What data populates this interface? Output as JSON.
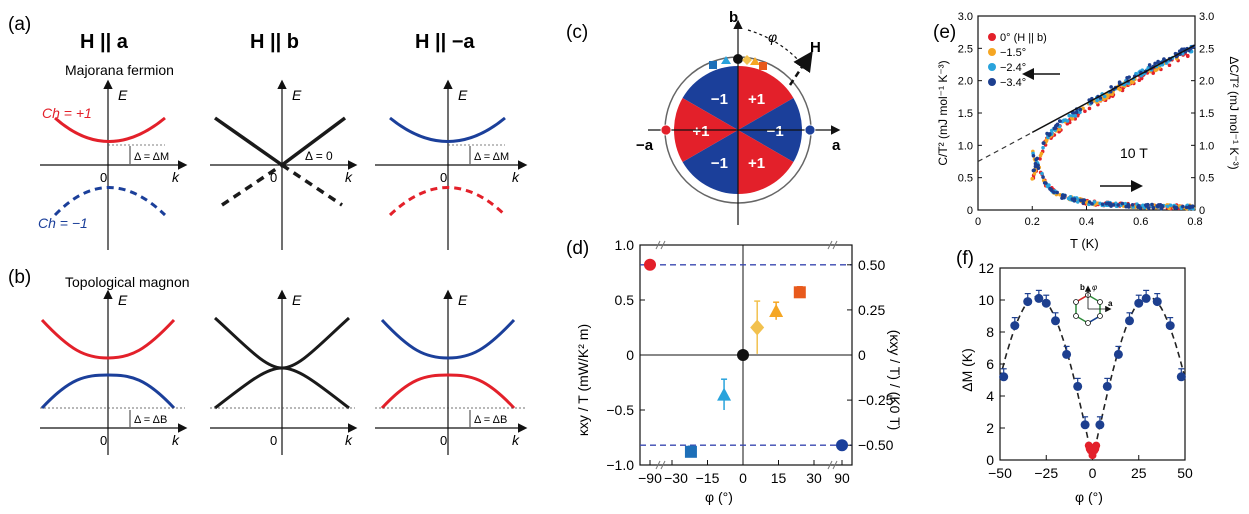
{
  "colors": {
    "red": "#e3202a",
    "blue": "#1b3f9a",
    "black": "#1a1a1a",
    "orange": "#e85a1c",
    "yellow": "#f5a623",
    "gold": "#f2c14e",
    "lightblue": "#29a3dc",
    "midblue": "#1d6fb8",
    "darkblue": "#1d3f8f"
  },
  "panels": {
    "a": {
      "label": "(a)",
      "title_a": "H || a",
      "title_b": "H || b",
      "title_ma": "H || −a",
      "subtitle": "Majorana fermion",
      "ch_plus": "Ch = +1",
      "ch_minus": "Ch = −1",
      "gap_m": "Δ = ΔM",
      "gap_zero": "Δ = 0",
      "e_label": "E",
      "k_label": "k",
      "zero": "0"
    },
    "b": {
      "label": "(b)",
      "subtitle": "Topological magnon",
      "gap_b": "Δ = ΔB",
      "e_label": "E",
      "k_label": "k",
      "zero": "0"
    },
    "c": {
      "label": "(c)",
      "b_axis": "b",
      "a_axis": "a",
      "ma_axis": "−a",
      "phi": "φ",
      "h": "H",
      "sectors": [
        "−1",
        "+1",
        "−1",
        "+1",
        "−1",
        "+1"
      ]
    },
    "e": {
      "label": "(e)",
      "field": "10 T"
    },
    "f": {
      "label": "(f)",
      "inset_b": "b",
      "inset_a": "a",
      "inset_phi": "φ"
    }
  },
  "chart_data": [
    {
      "type": "scatter",
      "id": "d",
      "label": "(d)",
      "title": "",
      "xlabel": "φ (°)",
      "ylabel": "κxy / T (mW/K² m)",
      "ylabel_right": "(κxy / T) / (K0 T)",
      "xticks": [
        "−90",
        "−15",
        "0",
        "15",
        "30",
        "90"
      ],
      "xticks_extra": [
        "−30"
      ],
      "yticks": [
        "1.0",
        "0.5",
        "0",
        "−0.5",
        "−1.0"
      ],
      "yticks_right": [
        "0.50",
        "0.25",
        "0",
        "−0.25",
        "−0.50"
      ],
      "ylim": [
        -1.0,
        1.0
      ],
      "dashed_levels": [
        0.82,
        -0.82
      ],
      "points": [
        {
          "phi": -90,
          "value": 0.82,
          "err": 0.0,
          "marker": "circle",
          "color": "#e3202a"
        },
        {
          "phi": -22,
          "value": -0.88,
          "err": 0.05,
          "marker": "square",
          "color": "#1d6fb8"
        },
        {
          "phi": -8,
          "value": -0.36,
          "err": 0.14,
          "marker": "triangle",
          "color": "#29a3dc"
        },
        {
          "phi": 0,
          "value": 0.0,
          "err": 0.0,
          "marker": "circle",
          "color": "#111111"
        },
        {
          "phi": 6,
          "value": 0.25,
          "err": 0.24,
          "marker": "diamond",
          "color": "#f2c14e"
        },
        {
          "phi": 14,
          "value": 0.4,
          "err": 0.08,
          "marker": "triangle",
          "color": "#f5a623"
        },
        {
          "phi": 24,
          "value": 0.57,
          "err": 0.05,
          "marker": "square",
          "color": "#e85a1c"
        },
        {
          "phi": 90,
          "value": -0.82,
          "err": 0.0,
          "marker": "circle",
          "color": "#1b3f9a"
        }
      ]
    },
    {
      "type": "scatter",
      "id": "e",
      "label": "(e)",
      "xlabel": "T (K)",
      "ylabel": "C/T² (mJ mol⁻¹ K⁻³)",
      "ylabel_right": "ΔC/T² (mJ mol⁻¹ K⁻³)",
      "xlim": [
        0,
        0.8
      ],
      "ylim": [
        0,
        3.0
      ],
      "xticks": [
        "0",
        "0.2",
        "0.4",
        "0.6",
        "0.8"
      ],
      "yticks": [
        "0",
        "0.5",
        "1.0",
        "1.5",
        "2.0",
        "2.5",
        "3.0"
      ],
      "legend": [
        {
          "name": "0° (H || b)",
          "color": "#e3202a"
        },
        {
          "name": "−1.5°",
          "color": "#f5a623"
        },
        {
          "name": "−2.4°",
          "color": "#29a3dc"
        },
        {
          "name": "−3.4°",
          "color": "#1d3f8f"
        }
      ],
      "fit_line": {
        "x": [
          0,
          0.8
        ],
        "y": [
          0.75,
          2.55
        ]
      },
      "series_main": {
        "x": [
          0.2,
          0.25,
          0.3,
          0.4,
          0.5,
          0.6,
          0.7,
          0.8
        ],
        "y": [
          0.5,
          1.1,
          1.3,
          1.6,
          1.85,
          2.1,
          2.3,
          2.5
        ]
      },
      "series_delta": {
        "x": [
          0.2,
          0.25,
          0.3,
          0.4,
          0.5,
          0.6,
          0.7,
          0.8
        ],
        "y": [
          0.9,
          0.4,
          0.22,
          0.12,
          0.08,
          0.06,
          0.05,
          0.05
        ]
      }
    },
    {
      "type": "scatter",
      "id": "f",
      "label": "(f)",
      "xlabel": "φ (°)",
      "ylabel": "ΔM (K)",
      "xlim": [
        -50,
        50
      ],
      "ylim": [
        0,
        12
      ],
      "xticks": [
        "−50",
        "−25",
        "0",
        "25",
        "50"
      ],
      "yticks": [
        "0",
        "2",
        "4",
        "6",
        "8",
        "10",
        "12"
      ],
      "blue_points": {
        "phi": [
          -48,
          -42,
          -35,
          -29,
          -25,
          -20,
          -14,
          -8,
          -4,
          4,
          8,
          14,
          20,
          25,
          29,
          35,
          42,
          48
        ],
        "value": [
          5.2,
          8.4,
          9.9,
          10.1,
          9.8,
          8.7,
          6.6,
          4.6,
          2.2,
          2.2,
          4.6,
          6.6,
          8.7,
          9.8,
          10.1,
          9.9,
          8.4,
          5.2
        ]
      },
      "red_points": {
        "phi": [
          -2,
          -1,
          0,
          1,
          2,
          -1.5,
          1.5
        ],
        "value": [
          0.9,
          0.6,
          0.3,
          0.6,
          0.9,
          0.7,
          0.7
        ]
      }
    }
  ]
}
